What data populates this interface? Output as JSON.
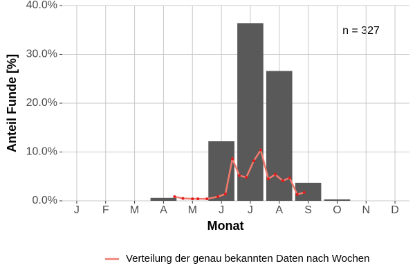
{
  "chart_data": {
    "type": "bar",
    "categories": [
      "J",
      "F",
      "M",
      "A",
      "M",
      "J",
      "J",
      "A",
      "S",
      "O",
      "N",
      "D"
    ],
    "values": [
      0,
      0,
      0,
      0.6,
      0,
      12.2,
      36.4,
      26.6,
      3.7,
      0.3,
      0,
      0
    ],
    "color": "#595959",
    "x_label": "Monat",
    "y_label": "Anteil Funde [%]",
    "annotation": "n = 327",
    "xlim": [
      0.5,
      12.5
    ],
    "ylim": [
      0,
      40
    ],
    "yticks": [
      {
        "value": 0,
        "label": "0.0%"
      },
      {
        "value": 10,
        "label": "10.0%"
      },
      {
        "value": 20,
        "label": "20.0%"
      },
      {
        "value": 30,
        "label": "30.0%"
      },
      {
        "value": 40,
        "label": "40.0%"
      }
    ],
    "grid": true,
    "legend": "bottom",
    "series": [
      {
        "type": "line",
        "name": "Verteilung der genau bekannten Daten nach Wochen",
        "color": "#f07b6e",
        "point_color": "#e31a1c",
        "x": [
          4.38,
          4.67,
          5.0,
          5.19,
          5.5,
          5.88,
          6.14,
          6.38,
          6.62,
          6.86,
          7.12,
          7.36,
          7.62,
          7.86,
          8.12,
          8.36,
          8.62,
          8.86
        ],
        "values": [
          0.85,
          0.5,
          0.4,
          0.4,
          0.4,
          0.85,
          1.4,
          8.6,
          5.2,
          4.8,
          8.2,
          10.4,
          4.5,
          5.4,
          4.1,
          4.7,
          1.3,
          1.7
        ]
      }
    ]
  }
}
